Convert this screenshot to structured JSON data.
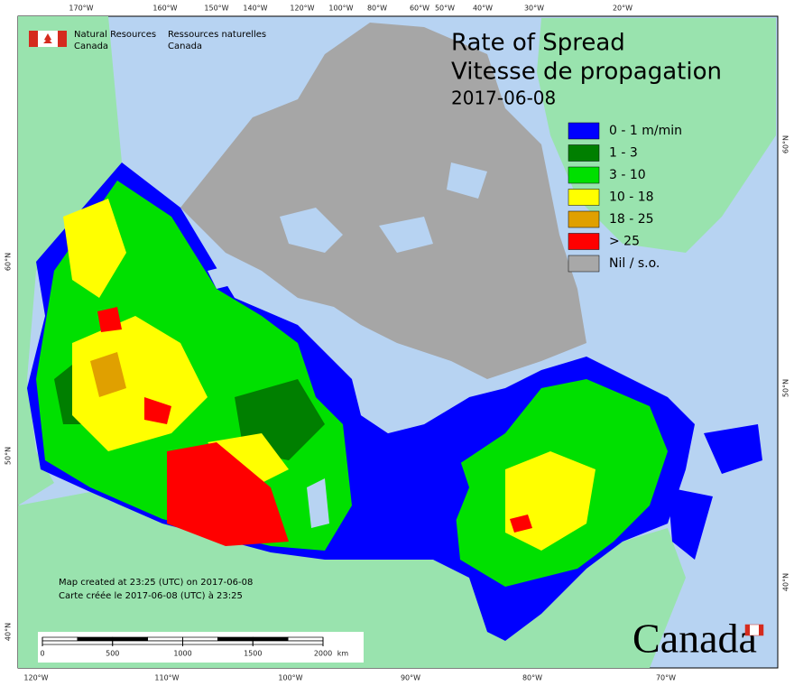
{
  "header": {
    "agency_en": [
      "Natural Resources",
      "Canada"
    ],
    "agency_fr": [
      "Ressources naturelles",
      "Canada"
    ]
  },
  "title": [
    "Rate of Spread",
    "Vitesse de propagation"
  ],
  "date": "2017-06-08",
  "legend": [
    {
      "label": "0 - 1 m/min",
      "color": "#0000ff"
    },
    {
      "label": "1 - 3",
      "color": "#007f00"
    },
    {
      "label": "3 - 10",
      "color": "#00e000"
    },
    {
      "label": "10 - 18",
      "color": "#ffff00"
    },
    {
      "label": "18 - 25",
      "color": "#e0a000"
    },
    {
      "label": "> 25",
      "color": "#ff0000"
    },
    {
      "label": "Nil / s.o.",
      "color": "#a8a8a8"
    }
  ],
  "graticule": {
    "top": [
      "170°W",
      "160°W",
      "150°W",
      "140°W",
      "120°W",
      "100°W",
      "80°W",
      "60°W",
      "50°W",
      "40°W",
      "30°W",
      "20°W"
    ],
    "bottom": [
      "120°W",
      "110°W",
      "100°W",
      "90°W",
      "80°W",
      "70°W"
    ],
    "left": [
      "60°N",
      "50°N",
      "40°N"
    ],
    "right": [
      "60°N",
      "50°N",
      "40°N"
    ]
  },
  "footer": [
    "Map created at 23:25 (UTC) on 2017-06-08",
    "Carte créée le 2017-06-08 (UTC) à 23:25"
  ],
  "scale_bar": {
    "ticks": [
      0,
      500,
      1000,
      1500,
      2000
    ],
    "unit": "km"
  },
  "wordmark": "Canada"
}
